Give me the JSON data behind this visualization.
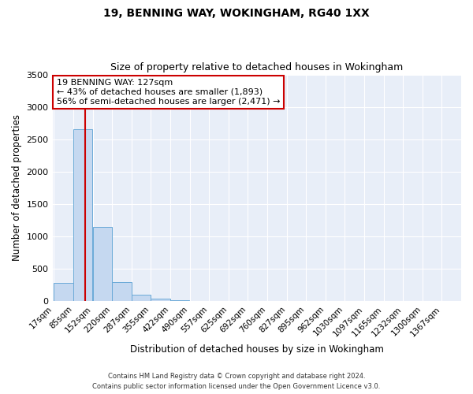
{
  "title1": "19, BENNING WAY, WOKINGHAM, RG40 1XX",
  "title2": "Size of property relative to detached houses in Wokingham",
  "xlabel": "Distribution of detached houses by size in Wokingham",
  "ylabel": "Number of detached properties",
  "bar_labels": [
    "17sqm",
    "85sqm",
    "152sqm",
    "220sqm",
    "287sqm",
    "355sqm",
    "422sqm",
    "490sqm",
    "557sqm",
    "625sqm",
    "692sqm",
    "760sqm",
    "827sqm",
    "895sqm",
    "962sqm",
    "1030sqm",
    "1097sqm",
    "1165sqm",
    "1232sqm",
    "1300sqm",
    "1367sqm"
  ],
  "bar_heights": [
    280,
    2650,
    1150,
    295,
    95,
    45,
    20,
    5,
    0,
    0,
    0,
    0,
    0,
    0,
    0,
    0,
    0,
    0,
    0,
    0,
    0
  ],
  "bar_color": "#c5d8f0",
  "bar_edge_color": "#6baad8",
  "vline_color": "#cc0000",
  "annotation_title": "19 BENNING WAY: 127sqm",
  "annotation_line1": "← 43% of detached houses are smaller (1,893)",
  "annotation_line2": "56% of semi-detached houses are larger (2,471) →",
  "annotation_box_facecolor": "#ffffff",
  "annotation_box_edgecolor": "#cc0000",
  "bin_edges": [
    17,
    84.5,
    152,
    219.5,
    287,
    354.5,
    422,
    489.5,
    557,
    624.5,
    692,
    759.5,
    827,
    894.5,
    962,
    1029.5,
    1097,
    1164.5,
    1232,
    1299.5,
    1367,
    1434.5
  ],
  "property_sqm": 127,
  "ylim": [
    0,
    3500
  ],
  "yticks": [
    0,
    500,
    1000,
    1500,
    2000,
    2500,
    3000,
    3500
  ],
  "plot_bg_color": "#e8eef8",
  "fig_bg_color": "#ffffff",
  "grid_color": "#ffffff",
  "footer1": "Contains HM Land Registry data © Crown copyright and database right 2024.",
  "footer2": "Contains public sector information licensed under the Open Government Licence v3.0."
}
